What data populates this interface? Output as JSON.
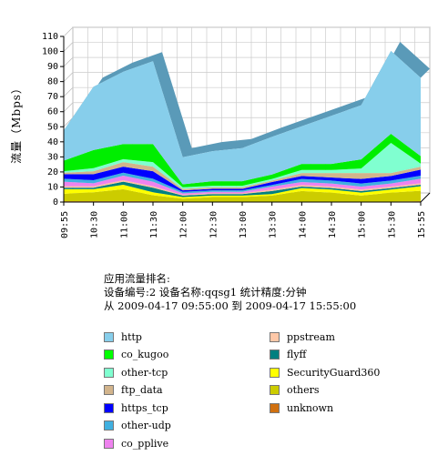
{
  "chart_data": {
    "type": "area",
    "ylabel": "流量（Mbps）",
    "ylim": [
      0,
      110
    ],
    "yticks": [
      0,
      10,
      20,
      30,
      40,
      50,
      60,
      70,
      80,
      90,
      100,
      110
    ],
    "x": [
      "09:55",
      "10:30",
      "11:00",
      "11:30",
      "12:00",
      "12:30",
      "13:00",
      "13:30",
      "14:00",
      "14:30",
      "15:00",
      "15:30",
      "15:55"
    ],
    "stacked": true,
    "grid": true,
    "legend_position": "bottom",
    "series": [
      {
        "name": "unknown",
        "color": "#d07010",
        "values": [
          0.5,
          0.5,
          0.5,
          0.5,
          0.3,
          0.3,
          0.3,
          0.3,
          0.3,
          0.3,
          0.3,
          0.3,
          0.5
        ]
      },
      {
        "name": "others",
        "color": "#cccc00",
        "values": [
          5,
          6,
          8,
          4,
          2,
          3,
          3,
          4,
          7,
          6,
          4,
          6,
          7
        ]
      },
      {
        "name": "SecurityGuard360",
        "color": "#ffff00",
        "values": [
          3,
          2,
          3,
          2,
          1,
          1,
          1,
          1,
          2,
          2,
          2,
          2,
          3
        ]
      },
      {
        "name": "flyff",
        "color": "#008080",
        "values": [
          1,
          1,
          2,
          3,
          1,
          1,
          1,
          2,
          1,
          1,
          1,
          1,
          1
        ]
      },
      {
        "name": "ppstream",
        "color": "#ffc0a0",
        "values": [
          1,
          1,
          1,
          1,
          0.5,
          0.5,
          0.5,
          1,
          1,
          1,
          1,
          1,
          1
        ]
      },
      {
        "name": "co_pplive",
        "color": "#ee82ee",
        "values": [
          3,
          2,
          3,
          3,
          1,
          1,
          1,
          2,
          2,
          2,
          2,
          2,
          3
        ]
      },
      {
        "name": "other-udp",
        "color": "#40b0e0",
        "values": [
          2,
          2,
          2,
          2,
          1,
          1,
          1,
          1,
          2,
          2,
          2,
          2,
          2
        ]
      },
      {
        "name": "https_tcp",
        "color": "#0000ff",
        "values": [
          3,
          4,
          4,
          5,
          1,
          1,
          1,
          2,
          2,
          2,
          3,
          3,
          4
        ]
      },
      {
        "name": "ftp_data",
        "color": "#d2b48c",
        "values": [
          1,
          2,
          3,
          3,
          1,
          1,
          1,
          1,
          2,
          3,
          4,
          2,
          2
        ]
      },
      {
        "name": "other-tcp",
        "color": "#80ffd0",
        "values": [
          1,
          2,
          2,
          3,
          1,
          1,
          1,
          1,
          2,
          2,
          3,
          20,
          2
        ]
      },
      {
        "name": "co_kugoo",
        "color": "#00ee00",
        "values": [
          7,
          12,
          10,
          12,
          2,
          3,
          3,
          3,
          4,
          4,
          6,
          6,
          5
        ]
      },
      {
        "name": "http",
        "color": "#87ceeb",
        "values": [
          20,
          42,
          48,
          55,
          18,
          20,
          22,
          25,
          25,
          32,
          36,
          55,
          52
        ]
      }
    ]
  },
  "caption": {
    "line1": "应用流量排名:",
    "line2": "设备编号:2 设备名称:qqsg1 统计精度:分钟",
    "line3": "从 2009-04-17 09:55:00 到 2009-04-17 15:55:00"
  },
  "legend": [
    {
      "label": "http",
      "color": "#87ceeb"
    },
    {
      "label": "co_kugoo",
      "color": "#00ff00"
    },
    {
      "label": "other-tcp",
      "color": "#80ffd0"
    },
    {
      "label": "ftp_data",
      "color": "#d2b48c"
    },
    {
      "label": "https_tcp",
      "color": "#0000ff"
    },
    {
      "label": "other-udp",
      "color": "#40b0e0"
    },
    {
      "label": "co_pplive",
      "color": "#ee82ee"
    },
    {
      "label": "ppstream",
      "color": "#ffc8a8"
    },
    {
      "label": "flyff",
      "color": "#008080"
    },
    {
      "label": "SecurityGuard360",
      "color": "#ffff00"
    },
    {
      "label": "others",
      "color": "#cccc00"
    },
    {
      "label": "unknown",
      "color": "#d07010"
    }
  ]
}
